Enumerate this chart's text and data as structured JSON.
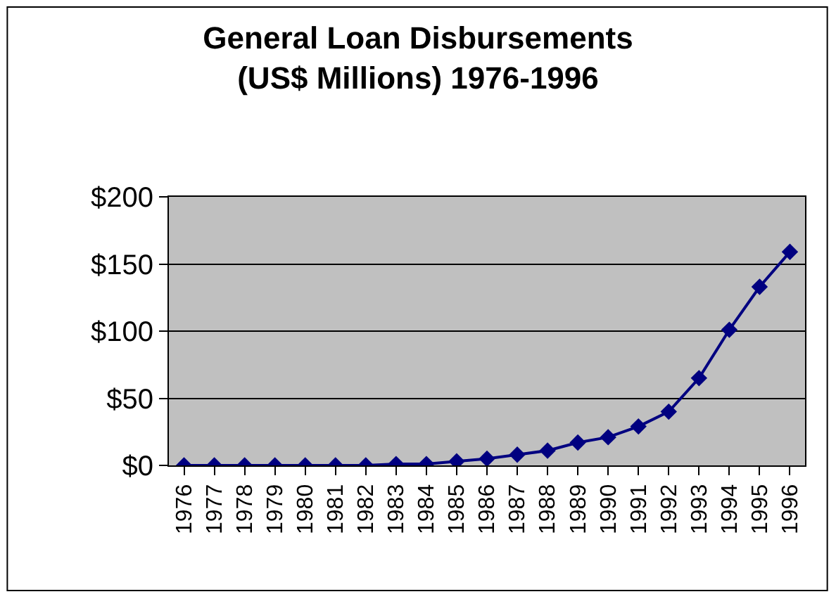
{
  "chart_data": {
    "type": "line",
    "title": "General Loan Disbursements\n(US$ Millions) 1976-1996",
    "categories": [
      "1976",
      "1977",
      "1978",
      "1979",
      "1980",
      "1981",
      "1982",
      "1983",
      "1984",
      "1985",
      "1986",
      "1987",
      "1988",
      "1989",
      "1990",
      "1991",
      "1992",
      "1993",
      "1994",
      "1995",
      "1996"
    ],
    "series": [
      {
        "color": "#000080",
        "values": [
          0,
          0,
          0,
          0,
          0,
          0,
          0,
          1,
          1,
          3,
          5,
          8,
          11,
          17,
          21,
          29,
          40,
          65,
          101,
          133,
          159
        ]
      }
    ],
    "ylim": [
      0,
      200
    ],
    "yticks": [
      {
        "value": 0,
        "label": "$0"
      },
      {
        "value": 50,
        "label": "$50"
      },
      {
        "value": 100,
        "label": "$100"
      },
      {
        "value": 150,
        "label": "$150"
      },
      {
        "value": 200,
        "label": "$200"
      }
    ],
    "grid": "y",
    "marker": "diamond",
    "line_style": "solid"
  }
}
